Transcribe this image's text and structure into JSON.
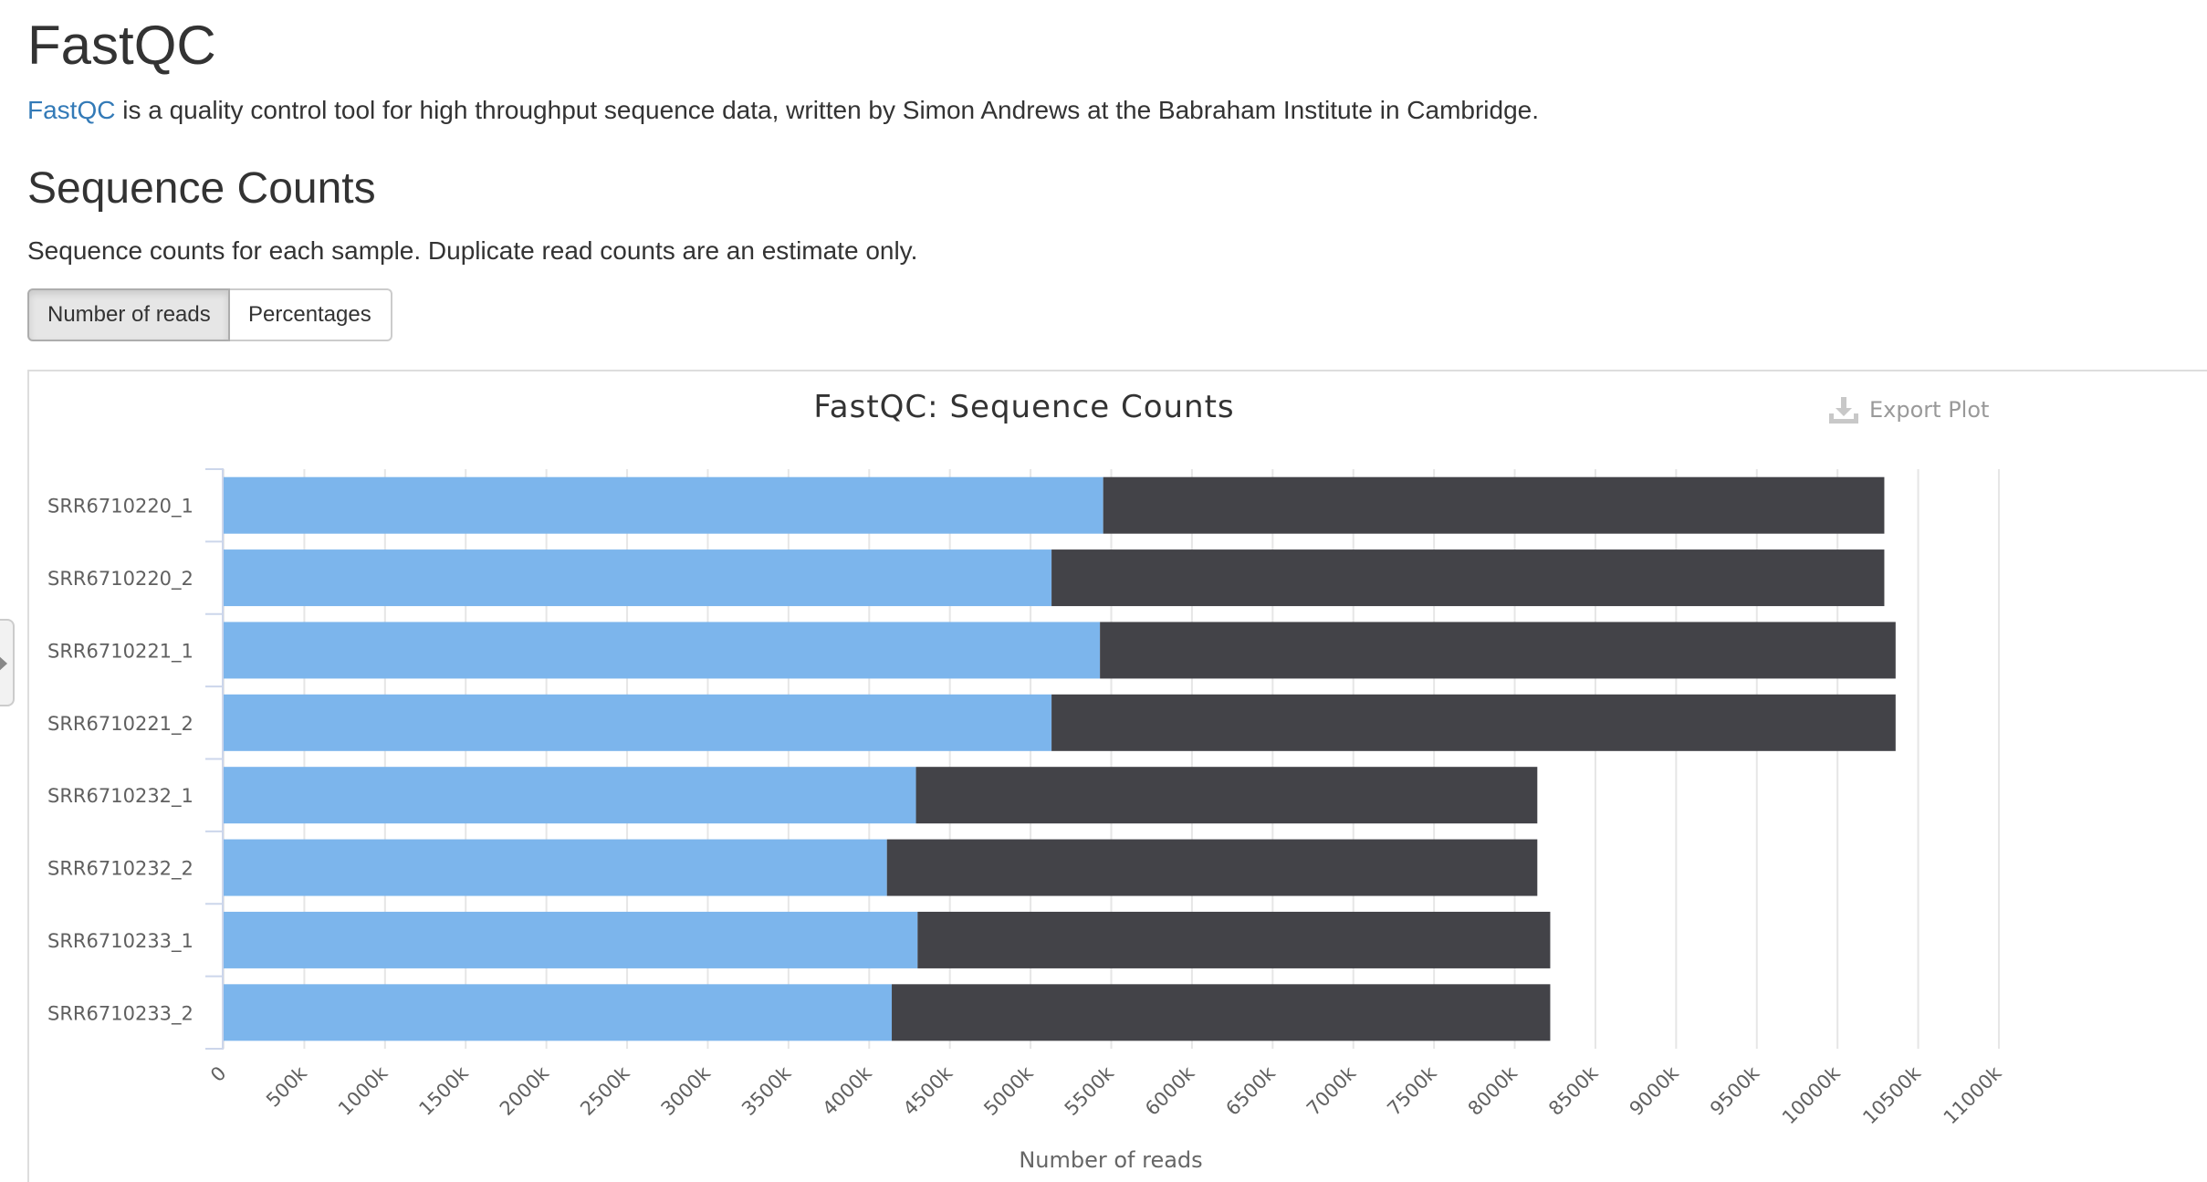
{
  "header": {
    "title": "FastQC",
    "intro_link": "FastQC",
    "intro_text": " is a quality control tool for high throughput sequence data, written by Simon Andrews at the Babraham Institute in Cambridge."
  },
  "section": {
    "title": "Sequence Counts",
    "description": "Sequence counts for each sample. Duplicate read counts are an estimate only.",
    "buttons": {
      "reads_label": "Number of reads",
      "percent_label": "Percentages"
    }
  },
  "export": {
    "label": "Export Plot",
    "icon": "download-icon"
  },
  "colors": {
    "unique": "#7cb5ec",
    "duplicate": "#434348"
  },
  "chart_data": {
    "type": "bar",
    "orientation": "horizontal",
    "stacked": true,
    "title": "FastQC: Sequence Counts",
    "xlabel": "Number of reads",
    "ylabel": "",
    "xlim": [
      0,
      11000000
    ],
    "grid": true,
    "legend": "none",
    "categories": [
      "SRR6710220_1",
      "SRR6710220_2",
      "SRR6710221_1",
      "SRR6710221_2",
      "SRR6710232_1",
      "SRR6710232_2",
      "SRR6710233_1",
      "SRR6710233_2"
    ],
    "tick_labels": [
      "0",
      "500k",
      "1000k",
      "1500k",
      "2000k",
      "2500k",
      "3000k",
      "3500k",
      "4000k",
      "4500k",
      "5000k",
      "5500k",
      "6000k",
      "6500k",
      "7000k",
      "7500k",
      "8000k",
      "8500k",
      "9000k",
      "9500k",
      "10000k",
      "10500k",
      "11000k"
    ],
    "tick_values": [
      0,
      500000,
      1000000,
      1500000,
      2000000,
      2500000,
      3000000,
      3500000,
      4000000,
      4500000,
      5000000,
      5500000,
      6000000,
      6500000,
      7000000,
      7500000,
      8000000,
      8500000,
      9000000,
      9500000,
      10000000,
      10500000,
      11000000
    ],
    "series": [
      {
        "values": [
          5450000,
          5130000,
          5430000,
          5130000,
          4290000,
          4110000,
          4300000,
          4140000
        ]
      },
      {
        "values": [
          4840000,
          5160000,
          4930000,
          5230000,
          3850000,
          4030000,
          3920000,
          4080000
        ]
      }
    ]
  }
}
